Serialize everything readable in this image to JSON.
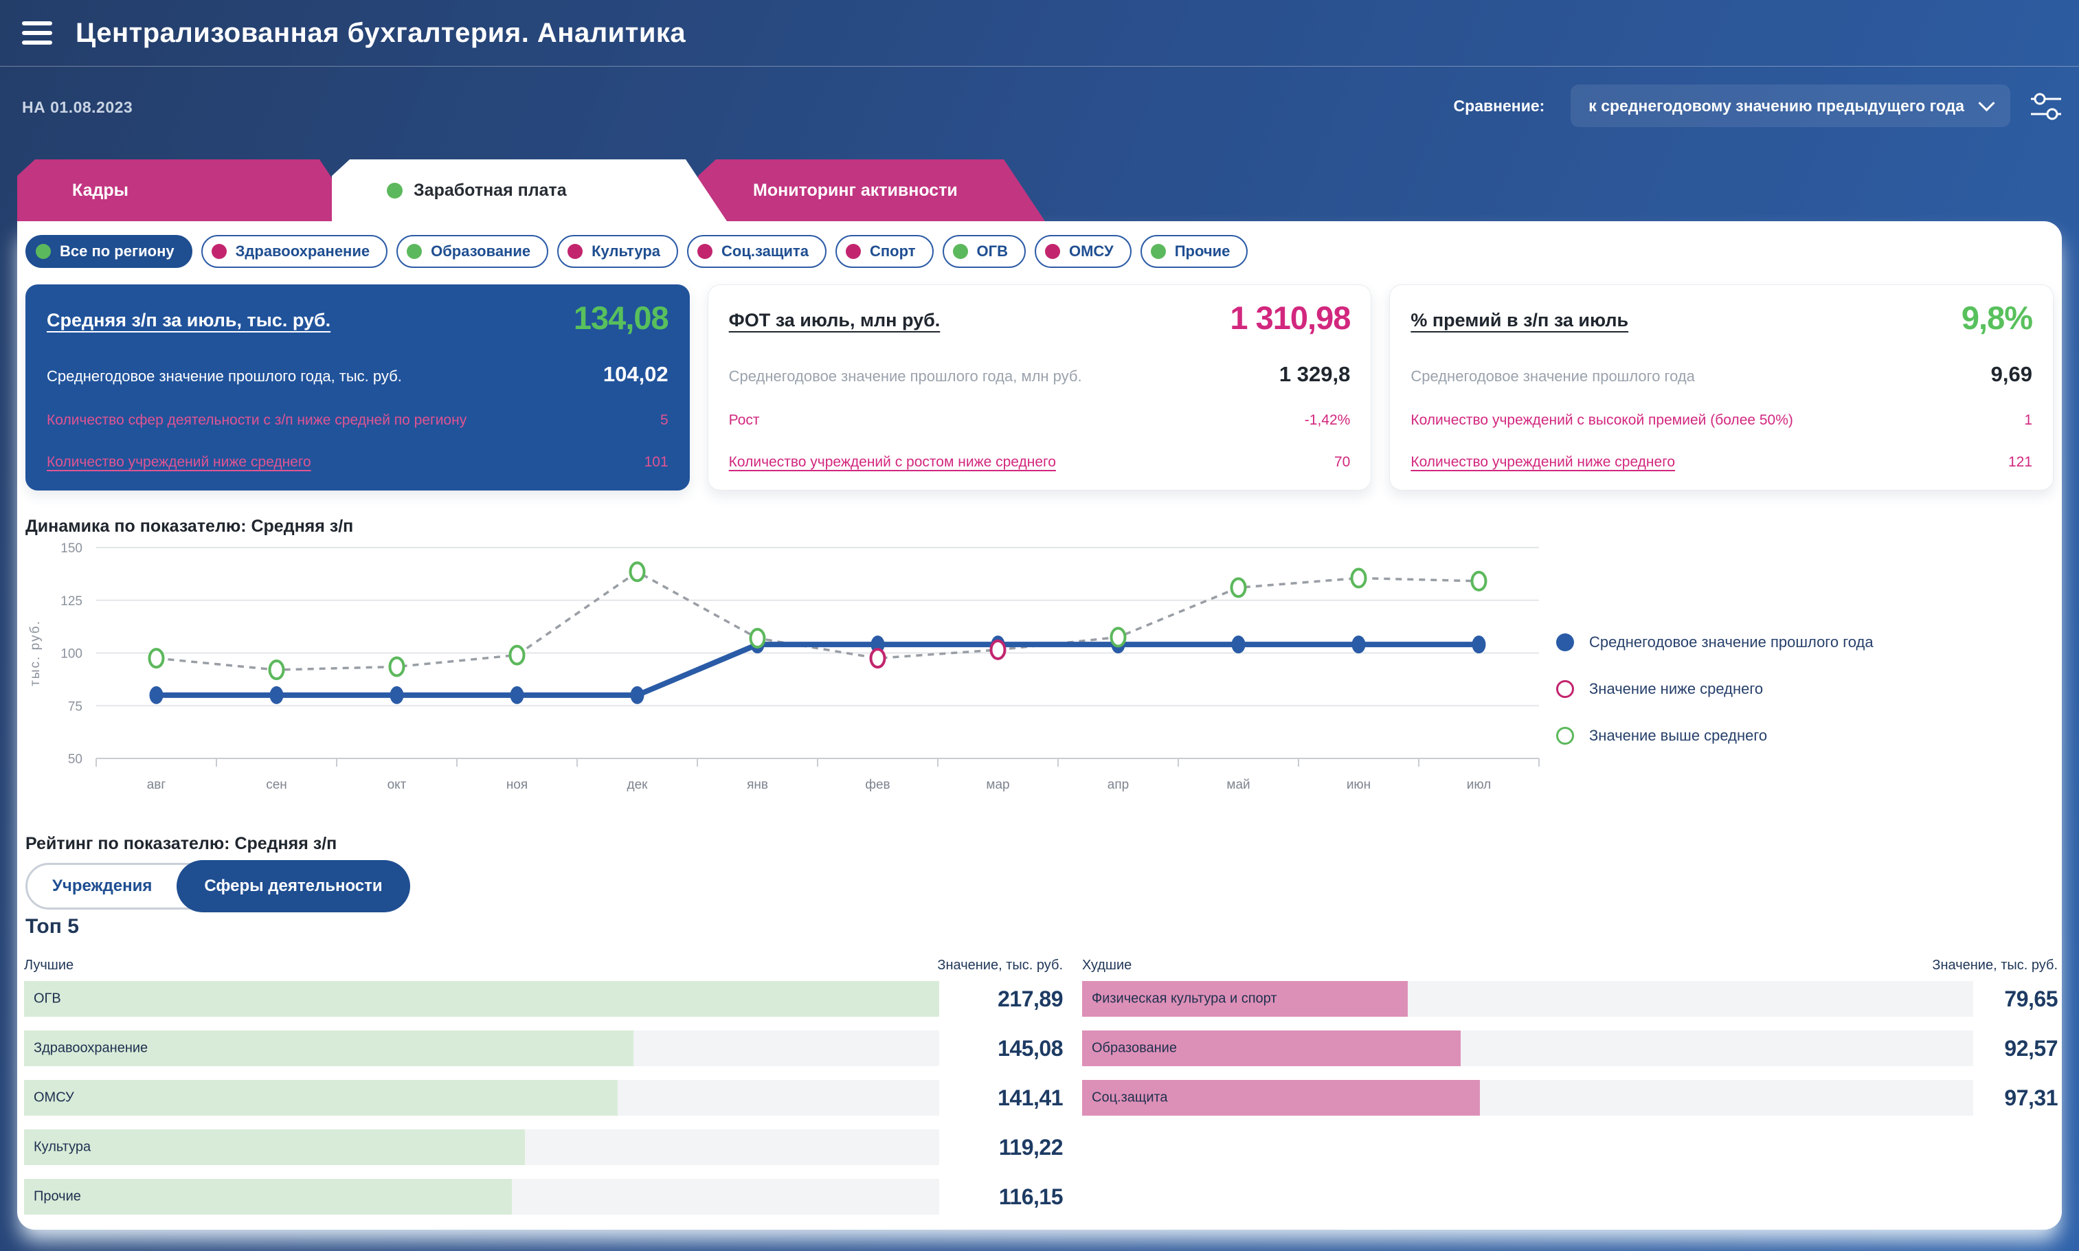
{
  "header": {
    "title": "Централизованная бухгалтерия. Аналитика",
    "date_label": "НА 01.08.2023",
    "comparison_label": "Сравнение:",
    "comparison_value": "к среднегодовому значению предыдущего года"
  },
  "colors": {
    "accent_pink": "#c23581",
    "accent_blue": "#1f4e91",
    "accent_green": "#5cb85c",
    "value_green": "#58c05c",
    "value_pink": "#d2277e",
    "bar_green": "#d8ebd8",
    "bar_pink": "#dd90b7"
  },
  "tabs": [
    {
      "label": "Кадры",
      "active": false
    },
    {
      "label": "Заработная плата",
      "active": true
    },
    {
      "label": "Мониторинг активности",
      "active": false
    }
  ],
  "filters": [
    {
      "label": "Все по региону",
      "dot_color": "#5cb85c",
      "active": true
    },
    {
      "label": "Здравоохранение",
      "dot_color": "#c2256e",
      "active": false
    },
    {
      "label": "Образование",
      "dot_color": "#5cb85c",
      "active": false
    },
    {
      "label": "Культура",
      "dot_color": "#c2256e",
      "active": false
    },
    {
      "label": "Соц.защита",
      "dot_color": "#c2256e",
      "active": false
    },
    {
      "label": "Спорт",
      "dot_color": "#c2256e",
      "active": false
    },
    {
      "label": "ОГВ",
      "dot_color": "#5cb85c",
      "active": false
    },
    {
      "label": "ОМСУ",
      "dot_color": "#c2256e",
      "active": false
    },
    {
      "label": "Прочие",
      "dot_color": "#5cb85c",
      "active": false
    }
  ],
  "cards": [
    {
      "title": "Средняя з/п за июль, тыс. руб.",
      "value": "134,08",
      "rows": [
        {
          "label": "Среднегодовое значение прошлого года, тыс. руб.",
          "value": "104,02"
        },
        {
          "label": "Количество сфер деятельности с з/п ниже средней по региону",
          "value": "5"
        },
        {
          "label": "Количество учреждений ниже среднего",
          "value": "101"
        }
      ]
    },
    {
      "title": "ФОТ за июль, млн руб.",
      "value": "1 310,98",
      "rows": [
        {
          "label": "Среднегодовое значение прошлого года, млн руб.",
          "value": "1 329,8"
        },
        {
          "label": "Рост",
          "value": "-1,42%"
        },
        {
          "label": "Количество учреждений с ростом ниже среднего",
          "value": "70"
        }
      ]
    },
    {
      "title": "% премий в з/п за июль",
      "value": "9,8%",
      "rows": [
        {
          "label": "Среднегодовое значение прошлого года",
          "value": "9,69"
        },
        {
          "label": "Количество учреждений с высокой премией (более 50%)",
          "value": "1"
        },
        {
          "label": "Количество учреждений ниже среднего",
          "value": "121"
        }
      ]
    }
  ],
  "chart_data": {
    "type": "line",
    "title": "Динамика по показателю: Средняя з/п",
    "ylabel": "тыс. руб.",
    "ylim": [
      50,
      150
    ],
    "yticks": [
      50,
      75,
      100,
      125,
      150
    ],
    "grid": true,
    "legend_position": "right",
    "categories": [
      "авг",
      "сен",
      "окт",
      "ноя",
      "дек",
      "янв",
      "фев",
      "мар",
      "апр",
      "май",
      "июн",
      "июл"
    ],
    "series": [
      {
        "name": "Среднегодовое значение прошлого года",
        "style": "solid-blue",
        "values": [
          80,
          80,
          80,
          80,
          80,
          104.02,
          104.02,
          104.02,
          104.02,
          104.02,
          104.02,
          104.02
        ]
      },
      {
        "name": "Средняя з/п",
        "style": "dashed-gray-open-markers",
        "values": [
          97.5,
          92,
          93.5,
          99,
          138.5,
          107,
          97.5,
          101.5,
          107.5,
          131,
          135.5,
          134.08
        ],
        "marker_colors": [
          "green",
          "green",
          "green",
          "green",
          "green",
          "green",
          "pink",
          "pink",
          "green",
          "green",
          "green",
          "green"
        ]
      }
    ],
    "legend": [
      {
        "label": "Среднегодовое значение прошлого года",
        "marker": "blue-filled"
      },
      {
        "label": "Значение ниже среднего",
        "marker": "pink-open"
      },
      {
        "label": "Значение выше среднего",
        "marker": "green-open"
      }
    ]
  },
  "rating": {
    "title": "Рейтинг по показателю: Средняя з/п",
    "toggle": [
      {
        "label": "Учреждения",
        "active": false
      },
      {
        "label": "Сферы деятельности",
        "active": true
      }
    ]
  },
  "top5": {
    "title": "Топ 5",
    "best_label": "Лучшие",
    "worst_label": "Худшие",
    "value_header": "Значение, тыс. руб.",
    "max_value": 217.89,
    "best": [
      {
        "name": "ОГВ",
        "value": "217,89",
        "num": 217.89
      },
      {
        "name": "Здравоохранение",
        "value": "145,08",
        "num": 145.08
      },
      {
        "name": "ОМСУ",
        "value": "141,41",
        "num": 141.41
      },
      {
        "name": "Культура",
        "value": "119,22",
        "num": 119.22
      },
      {
        "name": "Прочие",
        "value": "116,15",
        "num": 116.15
      }
    ],
    "worst": [
      {
        "name": "Физическая культура и спорт",
        "value": "79,65",
        "num": 79.65
      },
      {
        "name": "Образование",
        "value": "92,57",
        "num": 92.57
      },
      {
        "name": "Соц.защита",
        "value": "97,31",
        "num": 97.31
      }
    ]
  }
}
